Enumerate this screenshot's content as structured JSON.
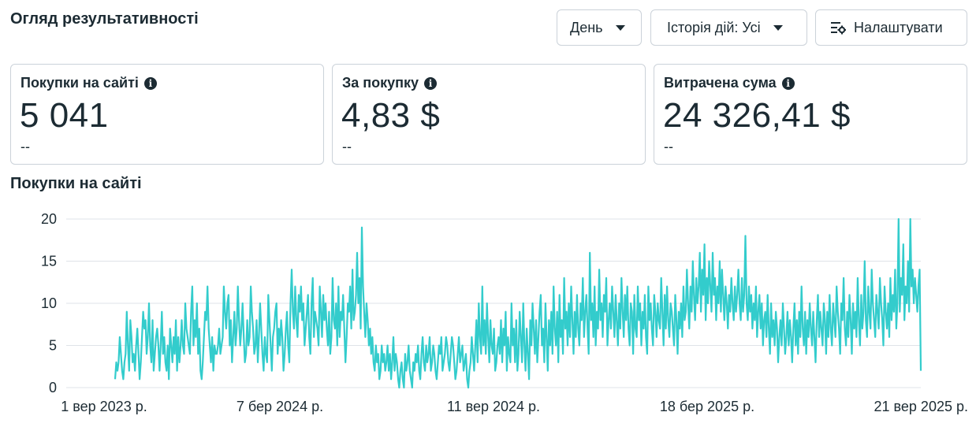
{
  "header": {
    "title": "Огляд результативності"
  },
  "toolbar": {
    "day_label": "День",
    "history_label": "Історія дій: Усі",
    "customize_label": "Налаштувати"
  },
  "cards": [
    {
      "label": "Покупки на сайті",
      "value": "5 041",
      "delta": "--"
    },
    {
      "label": "За покупку",
      "value": "4,83 $",
      "delta": "--"
    },
    {
      "label": "Витрачена сума",
      "value": "24 326,41 $",
      "delta": "--"
    }
  ],
  "colors": {
    "line": "#33cccc",
    "grid": "#dfe3e8",
    "text": "#1c2b33"
  },
  "chart_data": {
    "type": "line",
    "title": "Покупки на сайті",
    "ylim": [
      0,
      20
    ],
    "yticks": [
      "0",
      "5",
      "10",
      "15",
      "20"
    ],
    "x_tick_labels": [
      "1 вер 2023 р.",
      "7 бер 2024 р.",
      "11 вер 2024 р.",
      "18 бер 2025 р.",
      "21 вер 2025 р."
    ],
    "x_range": [
      "2023-09-01",
      "2025-09-21"
    ],
    "grid": true,
    "series": [
      {
        "values": [
          1,
          3,
          2,
          3,
          6,
          4,
          2,
          1,
          3,
          4,
          9,
          5,
          2,
          8,
          6,
          3,
          4,
          2,
          5,
          7,
          4,
          1,
          3,
          6,
          9,
          7,
          8,
          4,
          6,
          10,
          5,
          3,
          8,
          2,
          4,
          6,
          7,
          5,
          2,
          5,
          9,
          4,
          6,
          3,
          2,
          5,
          1,
          7,
          5,
          3,
          6,
          4,
          8,
          2,
          6,
          3,
          5,
          8,
          5,
          4,
          10,
          7,
          6,
          5,
          4,
          9,
          12,
          5,
          8,
          6,
          10,
          4,
          7,
          2,
          1,
          3,
          6,
          9,
          8,
          12,
          7,
          5,
          3,
          6,
          2,
          5,
          4,
          4,
          5,
          7,
          4,
          5,
          6,
          12,
          9,
          7,
          10,
          11,
          5,
          8,
          3,
          6,
          9,
          5,
          7,
          12,
          8,
          5,
          7,
          10,
          6,
          3,
          4,
          8,
          5,
          6,
          12,
          9,
          7,
          4,
          5,
          8,
          3,
          6,
          10,
          7,
          4,
          2,
          6,
          4,
          3,
          11,
          8,
          5,
          2,
          6,
          7,
          9,
          10,
          4,
          7,
          5,
          8,
          6,
          2,
          4,
          7,
          9,
          5,
          3,
          10,
          14,
          9,
          7,
          12,
          8,
          6,
          11,
          9,
          12,
          8,
          10,
          5,
          7,
          9,
          11,
          6,
          4,
          10,
          13,
          6,
          9,
          8,
          7,
          5,
          12,
          9,
          6,
          11,
          8,
          10,
          7,
          5,
          9,
          4,
          6,
          13,
          8,
          7,
          10,
          5,
          12,
          6,
          9,
          8,
          11,
          7,
          3,
          6,
          10,
          9,
          12,
          7,
          14,
          8,
          9,
          11,
          16,
          10,
          13,
          7,
          19,
          12,
          9,
          6,
          10,
          8,
          5,
          7,
          4,
          6,
          3,
          2,
          5,
          3,
          4,
          1,
          2,
          5,
          3,
          4,
          2,
          3,
          5,
          2,
          4,
          1,
          3,
          6,
          2,
          4,
          3,
          1,
          0,
          2,
          3,
          1,
          0,
          4,
          2,
          3,
          5,
          2,
          1,
          0,
          3,
          2,
          4,
          3,
          5,
          2,
          1,
          4,
          6,
          3,
          2,
          5,
          3,
          4,
          6,
          2,
          3,
          5,
          4,
          2,
          1,
          3,
          5,
          4,
          6,
          2,
          3,
          4,
          6,
          5,
          3,
          2,
          4,
          6,
          5,
          3,
          1,
          2,
          4,
          6,
          3,
          4,
          5,
          2,
          3,
          4,
          1,
          0,
          2,
          3,
          6,
          4,
          2,
          5,
          8,
          3,
          10,
          6,
          4,
          12,
          5,
          8,
          4,
          10,
          6,
          3,
          8,
          5,
          4,
          7,
          2,
          3,
          5,
          6,
          4,
          8,
          3,
          7,
          5,
          9,
          2,
          6,
          4,
          3,
          10,
          5,
          7,
          3,
          8,
          2,
          4,
          9,
          6,
          3,
          10,
          5,
          2,
          7,
          4,
          1,
          8,
          5,
          10,
          7,
          4,
          8,
          3,
          6,
          9,
          11,
          5,
          7,
          3,
          10,
          6,
          2,
          8,
          5,
          9,
          4,
          12,
          7,
          5,
          9,
          3,
          11,
          6,
          8,
          4,
          13,
          7,
          9,
          5,
          10,
          6,
          12,
          8,
          4,
          9,
          6,
          11,
          7,
          5,
          10,
          8,
          13,
          6,
          9,
          11,
          7,
          4,
          16,
          8,
          10,
          6,
          12,
          5,
          9,
          7,
          14,
          8,
          10,
          6,
          11,
          9,
          13,
          5,
          8,
          10,
          7,
          12,
          9,
          6,
          11,
          8,
          5,
          10,
          7,
          13,
          9,
          6,
          11,
          8,
          12,
          7,
          5,
          10,
          9,
          4,
          11,
          7,
          6,
          12,
          8,
          10,
          5,
          9,
          7,
          11,
          6,
          4,
          12,
          8,
          10,
          7,
          5,
          11,
          9,
          6,
          10,
          8,
          7,
          13,
          9,
          5,
          11,
          7,
          12,
          8,
          6,
          10,
          9,
          7,
          5,
          11,
          8,
          4,
          9,
          7,
          10,
          6,
          12,
          8,
          9,
          14,
          10,
          7,
          12,
          9,
          15,
          11,
          8,
          13,
          10,
          12,
          16,
          9,
          14,
          11,
          17,
          8,
          13,
          10,
          15,
          12,
          9,
          16,
          11,
          13,
          8,
          12,
          10,
          15,
          9,
          14,
          11,
          8,
          12,
          10,
          7,
          11,
          9,
          13,
          10,
          8,
          12,
          9,
          11,
          14,
          10,
          8,
          13,
          9,
          11,
          18,
          10,
          8,
          12,
          9,
          11,
          7,
          10,
          8,
          12,
          6,
          9,
          11,
          7,
          10,
          5,
          8,
          9,
          6,
          11,
          7,
          4,
          10,
          6,
          8,
          5,
          9,
          7,
          3,
          6,
          8,
          5,
          10,
          7,
          4,
          6,
          9,
          5,
          8,
          6,
          3,
          7,
          10,
          5,
          8,
          4,
          9,
          6,
          12,
          7,
          5,
          9,
          4,
          8,
          6,
          10,
          7,
          5,
          9,
          6,
          3,
          8,
          11,
          6,
          9,
          7,
          5,
          10,
          8,
          4,
          9,
          6,
          11,
          7,
          5,
          10,
          8,
          6,
          12,
          9,
          7,
          4,
          10,
          8,
          13,
          7,
          5,
          9,
          6,
          11,
          8,
          4,
          10,
          7,
          9,
          6,
          13,
          8,
          5,
          11,
          7,
          9,
          15,
          8,
          6,
          12,
          9,
          7,
          14,
          10,
          8,
          6,
          11,
          9,
          7,
          13,
          10,
          8,
          5,
          12,
          9,
          7,
          10,
          6,
          13,
          8,
          11,
          9,
          14,
          7,
          10,
          20,
          9,
          13,
          11,
          17,
          8,
          12,
          10,
          15,
          9,
          20,
          12,
          14,
          10,
          13,
          11,
          9,
          12,
          14,
          2
        ]
      }
    ]
  }
}
